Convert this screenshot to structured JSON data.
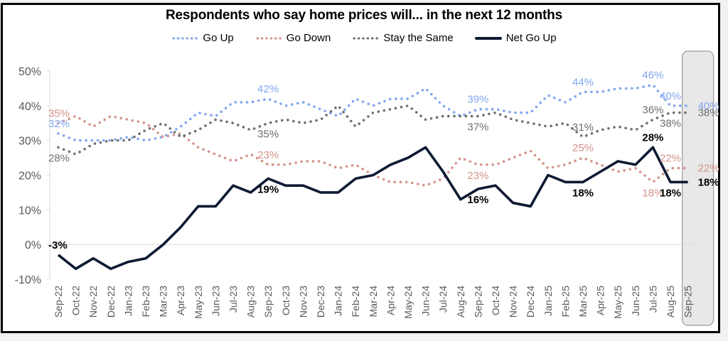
{
  "chart_data": {
    "type": "line",
    "title": "Respondents who say home prices will... in the next 12 months",
    "xlabel": "",
    "ylabel": "",
    "ylim": [
      -10,
      50
    ],
    "yticks": [
      "50%",
      "40%",
      "30%",
      "20%",
      "10%",
      "0%",
      "-10%"
    ],
    "ytick_values": [
      50,
      40,
      30,
      20,
      10,
      0,
      -10
    ],
    "grid": false,
    "legend_position": "top-center",
    "highlight_category": "Sep-25",
    "categories": [
      "Sep-22",
      "Oct-22",
      "Nov-22",
      "Dec-22",
      "Jan-23",
      "Feb-23",
      "Mar-23",
      "Apr-23",
      "May-23",
      "Jun-23",
      "Jul-23",
      "Aug-23",
      "Sep-23",
      "Oct-23",
      "Nov-23",
      "Dec-23",
      "Jan-24",
      "Feb-24",
      "Mar-24",
      "Apr-24",
      "May-24",
      "Jun-24",
      "Jul-24",
      "Aug-24",
      "Sep-24",
      "Oct-24",
      "Nov-24",
      "Dec-24",
      "Jan-25",
      "Feb-25",
      "Mar-25",
      "Apr-25",
      "May-25",
      "Jun-25",
      "Jul-25",
      "Aug-25",
      "Sep-25"
    ],
    "series": [
      {
        "name": "Go Up",
        "style": "dotted",
        "color": "#7fa6f0",
        "values": [
          32,
          30,
          30,
          30,
          31,
          30,
          31,
          34,
          38,
          37,
          41,
          41,
          42,
          40,
          41,
          39,
          37,
          42,
          40,
          42,
          42,
          45,
          40,
          37,
          39,
          39,
          38,
          38,
          43,
          41,
          44,
          44,
          45,
          45,
          46,
          40,
          40
        ],
        "labels": [
          {
            "index": 0,
            "text": "32%",
            "pos": "above"
          },
          {
            "index": 12,
            "text": "42%",
            "pos": "above"
          },
          {
            "index": 24,
            "text": "39%",
            "pos": "above"
          },
          {
            "index": 30,
            "text": "44%",
            "pos": "above"
          },
          {
            "index": 34,
            "text": "46%",
            "pos": "above"
          },
          {
            "index": 35,
            "text": "40%",
            "pos": "above"
          },
          {
            "index": 36,
            "text": "40%",
            "pos": "right"
          }
        ]
      },
      {
        "name": "Go Down",
        "style": "dotted",
        "color": "#d4938a",
        "values": [
          35,
          37,
          34,
          37,
          36,
          35,
          31,
          32,
          28,
          26,
          24,
          26,
          23,
          23,
          24,
          24,
          22,
          23,
          20,
          18,
          18,
          17,
          19,
          25,
          23,
          23,
          25,
          27,
          22,
          23,
          25,
          23,
          21,
          22,
          18,
          22,
          22
        ],
        "labels": [
          {
            "index": 0,
            "text": "35%",
            "pos": "above"
          },
          {
            "index": 12,
            "text": "23%",
            "pos": "above"
          },
          {
            "index": 24,
            "text": "23%",
            "pos": "below"
          },
          {
            "index": 30,
            "text": "25%",
            "pos": "above"
          },
          {
            "index": 34,
            "text": "18%",
            "pos": "below"
          },
          {
            "index": 35,
            "text": "22%",
            "pos": "above"
          },
          {
            "index": 36,
            "text": "22%",
            "pos": "right"
          }
        ]
      },
      {
        "name": "Stay the Same",
        "style": "dotted",
        "color": "#6e6e6e",
        "values": [
          28,
          26,
          29,
          30,
          30,
          33,
          35,
          31,
          33,
          36,
          35,
          33,
          35,
          36,
          35,
          36,
          40,
          34,
          38,
          39,
          40,
          36,
          37,
          37,
          37,
          38,
          36,
          35,
          34,
          35,
          31,
          33,
          34,
          33,
          36,
          38,
          38
        ],
        "labels": [
          {
            "index": 0,
            "text": "28%",
            "pos": "below"
          },
          {
            "index": 12,
            "text": "35%",
            "pos": "below"
          },
          {
            "index": 24,
            "text": "37%",
            "pos": "below"
          },
          {
            "index": 30,
            "text": "31%",
            "pos": "above"
          },
          {
            "index": 34,
            "text": "36%",
            "pos": "above"
          },
          {
            "index": 35,
            "text": "38%",
            "pos": "below"
          },
          {
            "index": 36,
            "text": "38%",
            "pos": "right"
          }
        ]
      },
      {
        "name": "Net Go Up",
        "style": "solid",
        "color": "#0d1a33",
        "values": [
          -3,
          -7,
          -4,
          -7,
          -5,
          -4,
          0,
          5,
          11,
          11,
          17,
          15,
          19,
          17,
          17,
          15,
          15,
          19,
          20,
          23,
          25,
          28,
          21,
          13,
          16,
          17,
          12,
          11,
          20,
          18,
          18,
          21,
          24,
          23,
          28,
          18,
          18
        ],
        "labels": [
          {
            "index": 0,
            "text": "-3%",
            "pos": "above"
          },
          {
            "index": 12,
            "text": "19%",
            "pos": "below"
          },
          {
            "index": 24,
            "text": "16%",
            "pos": "below"
          },
          {
            "index": 30,
            "text": "18%",
            "pos": "below"
          },
          {
            "index": 34,
            "text": "28%",
            "pos": "above"
          },
          {
            "index": 35,
            "text": "18%",
            "pos": "below"
          },
          {
            "index": 36,
            "text": "18%",
            "pos": "right"
          }
        ]
      }
    ]
  }
}
